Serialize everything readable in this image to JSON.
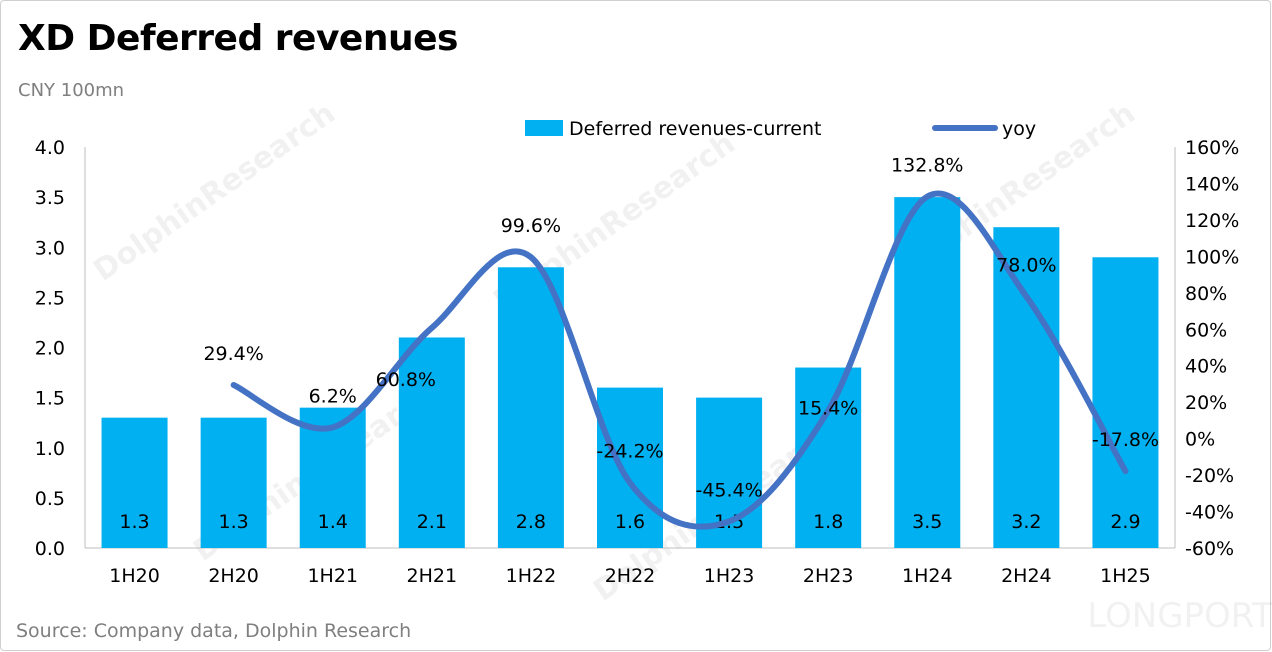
{
  "title": "XD Deferred revenues",
  "subtitle": "CNY 100mn",
  "source": "Source: Company data, Dolphin Research",
  "watermarks": [
    "DolphinResearch",
    "LONGPORT"
  ],
  "colors": {
    "bar": "#00b0f0",
    "line": "#4472c4"
  },
  "chart_data": {
    "type": "bar+line",
    "categories": [
      "1H20",
      "2H20",
      "1H21",
      "2H21",
      "1H22",
      "2H22",
      "1H23",
      "2H23",
      "1H24",
      "2H24",
      "1H25"
    ],
    "series": [
      {
        "name": "Deferred revenues-current",
        "type": "bar",
        "axis": "left",
        "values": [
          1.3,
          1.3,
          1.4,
          2.1,
          2.8,
          1.6,
          1.5,
          1.8,
          3.5,
          3.2,
          2.9
        ],
        "labels": [
          "1.3",
          "1.3",
          "1.4",
          "2.1",
          "2.8",
          "1.6",
          "1.5",
          "1.8",
          "3.5",
          "3.2",
          "2.9"
        ]
      },
      {
        "name": "yoy",
        "type": "line",
        "axis": "right",
        "smooth": true,
        "values": [
          null,
          29.4,
          6.2,
          60.8,
          99.6,
          -24.2,
          -45.4,
          15.4,
          132.8,
          78.0,
          -17.8
        ],
        "labels": [
          null,
          "29.4%",
          "6.2%",
          "60.8%",
          "99.6%",
          "-24.2%",
          "-45.4%",
          "15.4%",
          "132.8%",
          "78.0%",
          "-17.8%"
        ]
      }
    ],
    "left_axis": {
      "ylim": [
        0,
        4
      ],
      "ticks": [
        "0.0",
        "0.5",
        "1.0",
        "1.5",
        "2.0",
        "2.5",
        "3.0",
        "3.5",
        "4.0"
      ]
    },
    "right_axis": {
      "ylim": [
        -60,
        160
      ],
      "ticks": [
        "-60%",
        "-40%",
        "-20%",
        "0%",
        "20%",
        "40%",
        "60%",
        "80%",
        "100%",
        "120%",
        "140%",
        "160%"
      ]
    },
    "legend": "top",
    "grid": false
  }
}
